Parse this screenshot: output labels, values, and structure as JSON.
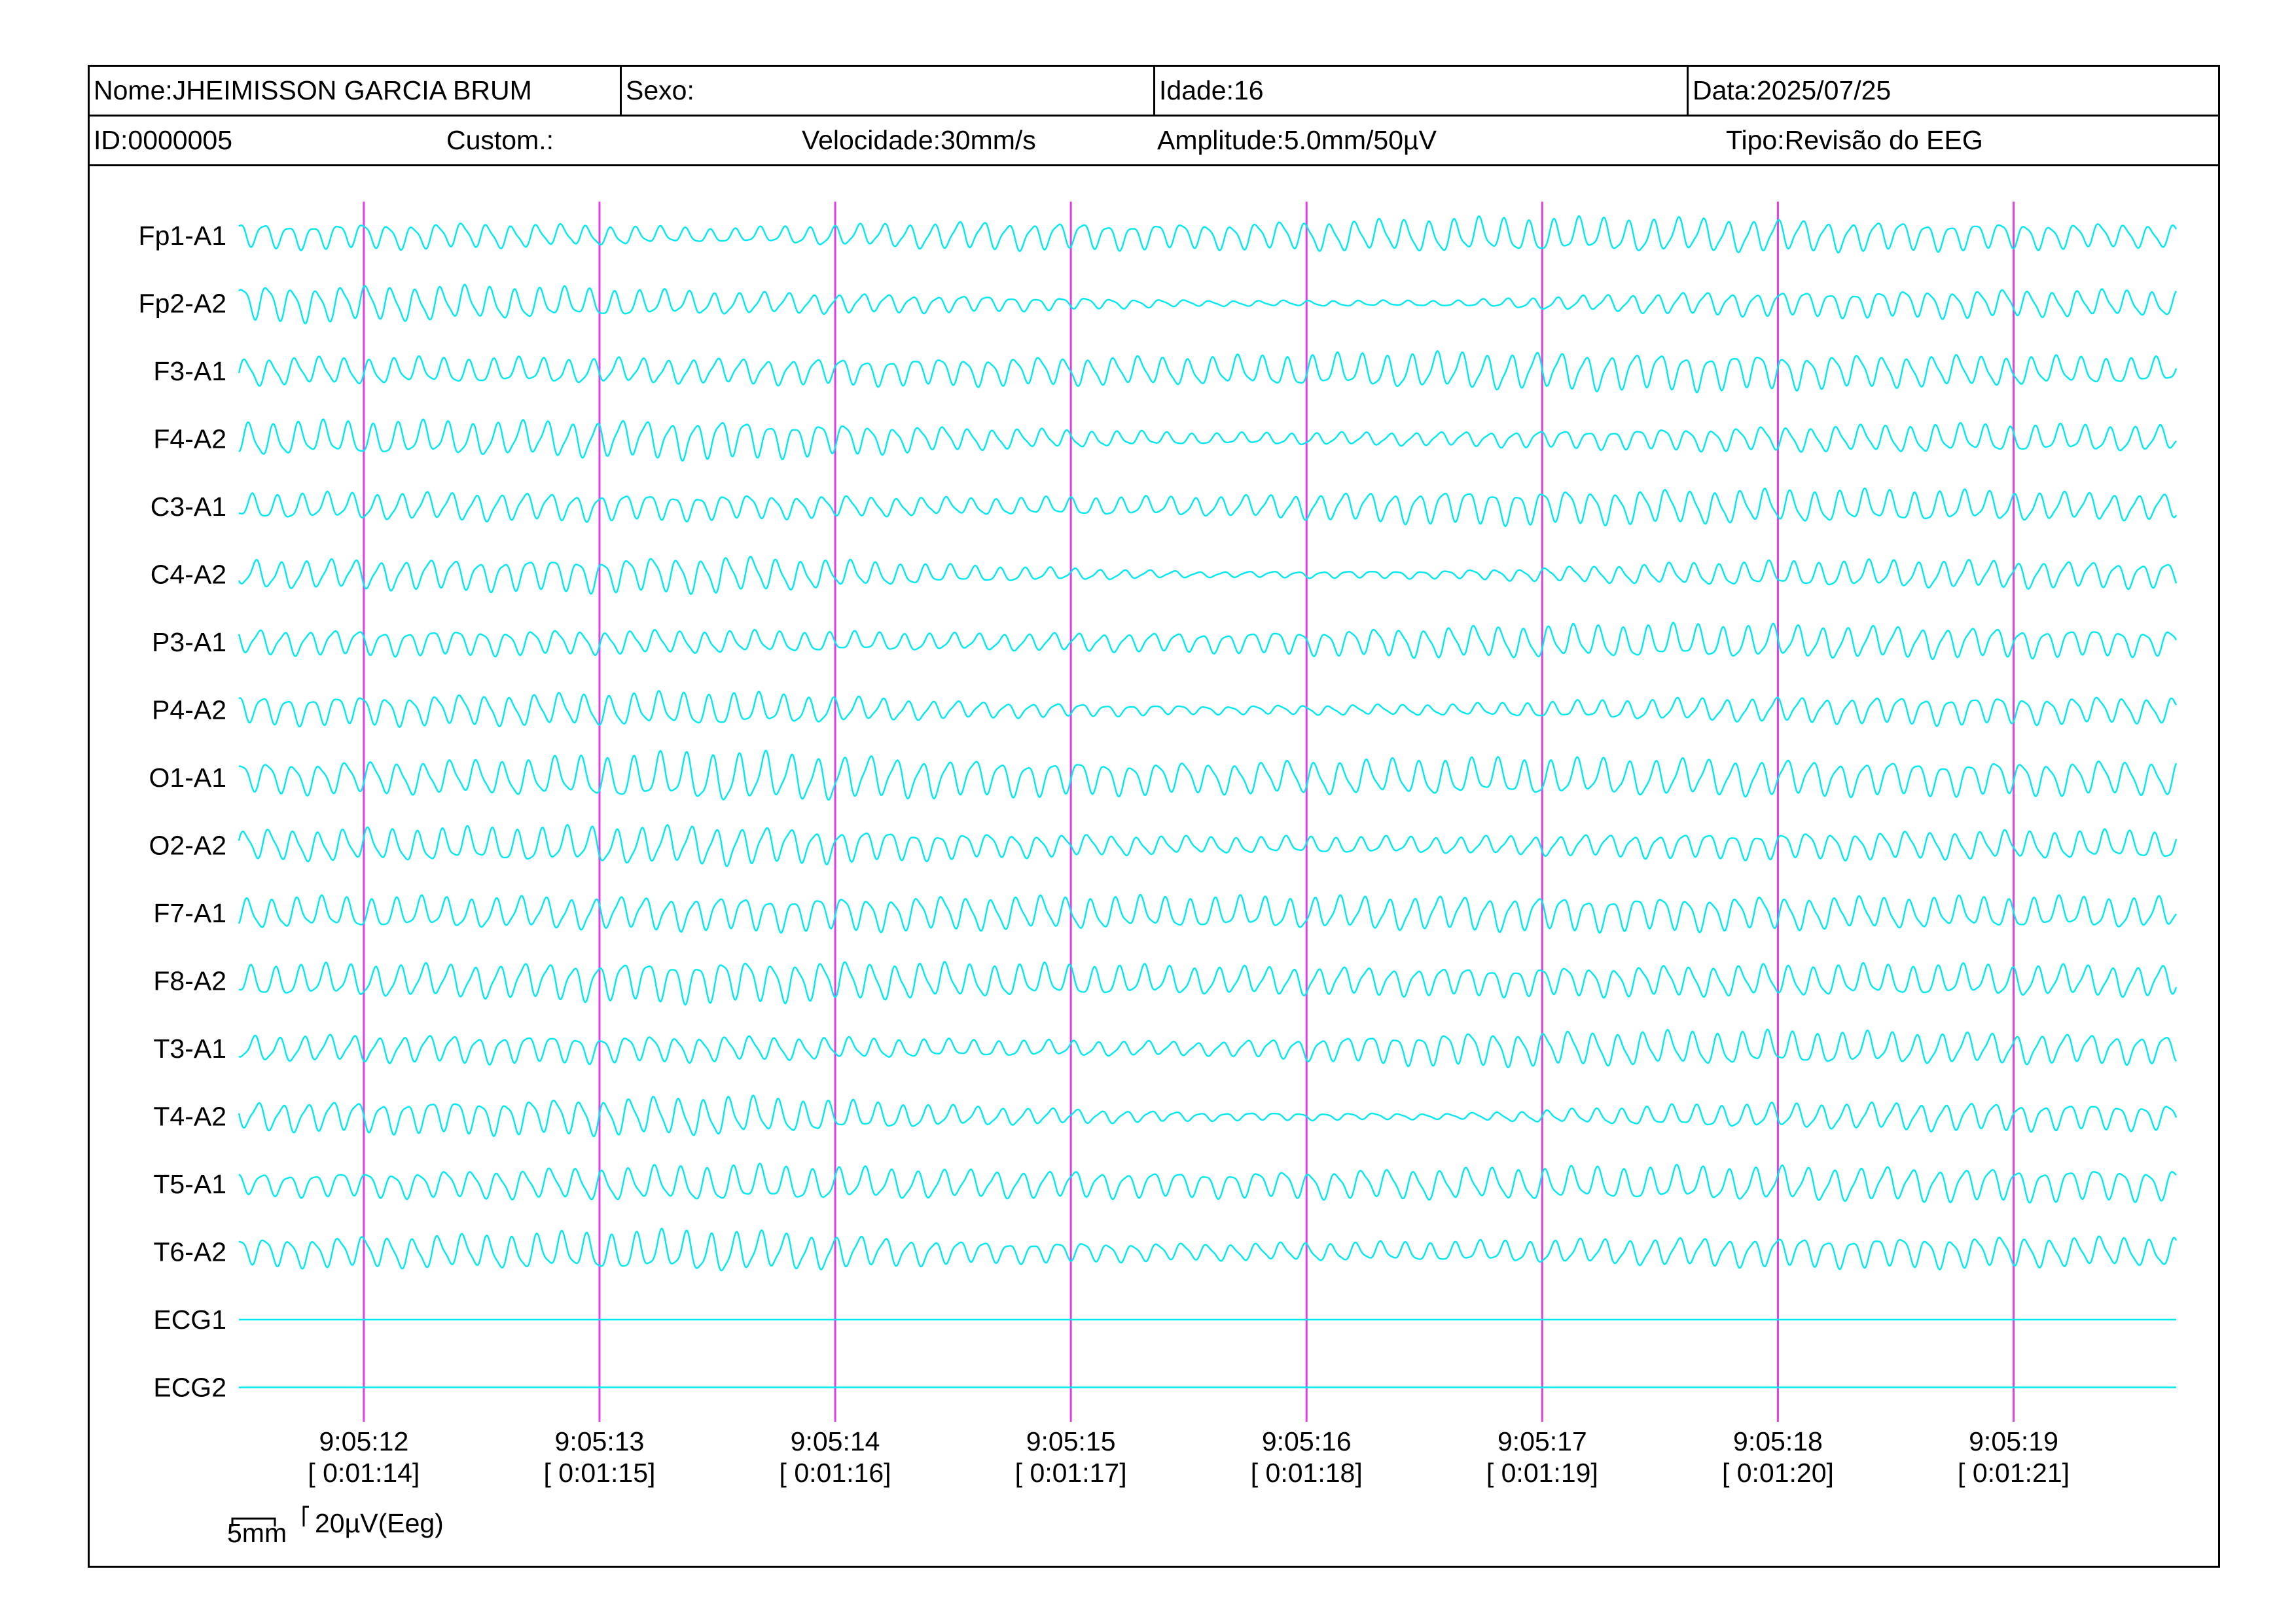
{
  "header": {
    "nome": "Nome:JHEIMISSON GARCIA BRUM",
    "sexo": "Sexo:",
    "idade": "Idade:16",
    "data": "Data:2025/07/25",
    "id": "ID:0000005",
    "custom": "Custom.:",
    "velocidade": "Velocidade:30mm/s",
    "amplitude": "Amplitude:5.0mm/50µV",
    "tipo": "Tipo:Revisão do EEG"
  },
  "colors": {
    "trace": "#00e8f0",
    "marker": "#e040e0",
    "border": "#000000"
  },
  "scale": {
    "time_label": "5mm",
    "amp_label": "20µV(Eeg)"
  },
  "chart_data": {
    "type": "line",
    "title": "",
    "xlabel": "",
    "ylabel": "",
    "x_range_seconds": [
      11.47,
      19.69
    ],
    "time_markers": [
      {
        "time": "9:05:12",
        "elapsed": "[ 0:01:14]",
        "t": 12
      },
      {
        "time": "9:05:13",
        "elapsed": "[ 0:01:15]",
        "t": 13
      },
      {
        "time": "9:05:14",
        "elapsed": "[ 0:01:16]",
        "t": 14
      },
      {
        "time": "9:05:15",
        "elapsed": "[ 0:01:17]",
        "t": 15
      },
      {
        "time": "9:05:16",
        "elapsed": "[ 0:01:18]",
        "t": 16
      },
      {
        "time": "9:05:17",
        "elapsed": "[ 0:01:19]",
        "t": 17
      },
      {
        "time": "9:05:18",
        "elapsed": "[ 0:01:20]",
        "t": 18
      },
      {
        "time": "9:05:19",
        "elapsed": "[ 0:01:21]",
        "t": 19
      }
    ],
    "series": [
      {
        "name": "Fp1-A1",
        "freq_hz": 9.5,
        "amp": [
          0.45,
          0.45,
          0.25,
          0.5,
          0.45,
          0.6,
          0.6,
          0.5,
          0.4
        ]
      },
      {
        "name": "Fp2-A2",
        "freq_hz": 9.5,
        "amp": [
          0.65,
          0.6,
          0.4,
          0.3,
          0.1,
          0.1,
          0.4,
          0.5,
          0.45
        ]
      },
      {
        "name": "F3-A1",
        "freq_hz": 9.5,
        "amp": [
          0.5,
          0.45,
          0.45,
          0.5,
          0.5,
          0.65,
          0.65,
          0.55,
          0.45
        ]
      },
      {
        "name": "F4-A2",
        "freq_hz": 9.5,
        "amp": [
          0.6,
          0.6,
          0.7,
          0.4,
          0.2,
          0.25,
          0.4,
          0.5,
          0.45
        ]
      },
      {
        "name": "C3-A1",
        "freq_hz": 9.5,
        "amp": [
          0.45,
          0.5,
          0.45,
          0.3,
          0.35,
          0.6,
          0.6,
          0.55,
          0.45
        ]
      },
      {
        "name": "C4-A2",
        "freq_hz": 9.5,
        "amp": [
          0.5,
          0.55,
          0.65,
          0.3,
          0.1,
          0.15,
          0.4,
          0.5,
          0.45
        ]
      },
      {
        "name": "P3-A1",
        "freq_hz": 9.5,
        "amp": [
          0.45,
          0.45,
          0.4,
          0.3,
          0.35,
          0.55,
          0.6,
          0.55,
          0.45
        ]
      },
      {
        "name": "P4-A2",
        "freq_hz": 9.5,
        "amp": [
          0.5,
          0.55,
          0.6,
          0.3,
          0.15,
          0.2,
          0.4,
          0.5,
          0.45
        ]
      },
      {
        "name": "O1-A1",
        "freq_hz": 9.0,
        "amp": [
          0.55,
          0.6,
          0.9,
          0.65,
          0.55,
          0.65,
          0.65,
          0.6,
          0.6
        ]
      },
      {
        "name": "O2-A2",
        "freq_hz": 9.5,
        "amp": [
          0.55,
          0.6,
          0.7,
          0.45,
          0.3,
          0.3,
          0.45,
          0.5,
          0.5
        ]
      },
      {
        "name": "F7-A1",
        "freq_hz": 9.5,
        "amp": [
          0.55,
          0.55,
          0.6,
          0.6,
          0.55,
          0.6,
          0.6,
          0.55,
          0.55
        ]
      },
      {
        "name": "F8-A2",
        "freq_hz": 9.5,
        "amp": [
          0.55,
          0.6,
          0.75,
          0.6,
          0.5,
          0.5,
          0.55,
          0.55,
          0.55
        ]
      },
      {
        "name": "T3-A1",
        "freq_hz": 9.5,
        "amp": [
          0.45,
          0.5,
          0.45,
          0.3,
          0.25,
          0.6,
          0.6,
          0.55,
          0.5
        ]
      },
      {
        "name": "T4-A2",
        "freq_hz": 9.5,
        "amp": [
          0.5,
          0.6,
          0.7,
          0.35,
          0.15,
          0.1,
          0.4,
          0.5,
          0.45
        ]
      },
      {
        "name": "T5-A1",
        "freq_hz": 9.0,
        "amp": [
          0.4,
          0.5,
          0.65,
          0.5,
          0.45,
          0.55,
          0.6,
          0.6,
          0.55
        ]
      },
      {
        "name": "T6-A2",
        "freq_hz": 9.5,
        "amp": [
          0.5,
          0.6,
          0.75,
          0.4,
          0.3,
          0.35,
          0.5,
          0.55,
          0.5
        ]
      },
      {
        "name": "ECG1",
        "freq_hz": 0,
        "amp": [
          0,
          0,
          0,
          0,
          0,
          0,
          0,
          0,
          0
        ]
      },
      {
        "name": "ECG2",
        "freq_hz": 0,
        "amp": [
          0,
          0,
          0,
          0,
          0,
          0,
          0,
          0,
          0
        ]
      }
    ]
  }
}
